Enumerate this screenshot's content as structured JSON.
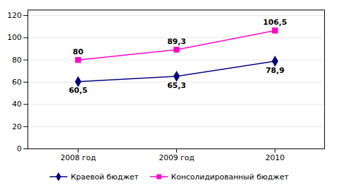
{
  "chart_data": {
    "type": "line",
    "categories": [
      "2008 год",
      "2009 год",
      "2010"
    ],
    "series": [
      {
        "name": "Краевой бюджет",
        "color": "#000080",
        "marker": "diamond",
        "values": [
          60.5,
          65.3,
          78.9
        ],
        "value_labels": [
          "60,5",
          "65,3",
          "78,9"
        ]
      },
      {
        "name": "Консолидированный бюджет",
        "color": "#FF00CC",
        "marker": "square",
        "values": [
          80,
          89.3,
          106.5
        ],
        "value_labels": [
          "80",
          "89,3",
          "106,5"
        ]
      }
    ],
    "ylim": [
      0,
      125
    ],
    "yticks": [
      0,
      20,
      40,
      60,
      80,
      100,
      120
    ],
    "grid": true,
    "data_labels": true,
    "legend": "bottom"
  }
}
